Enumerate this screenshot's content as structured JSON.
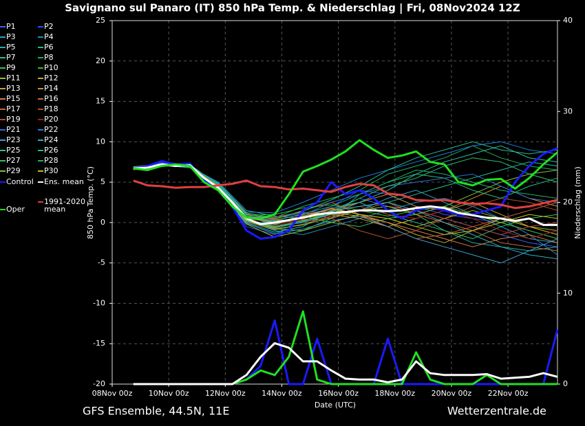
{
  "chart_data": {
    "type": "line",
    "title": "Savignano sul Panaro  (IT)  850 hPa Temp. & Niederschlag | Fri, 08Nov2024 12Z",
    "x_label": "Date (UTC)",
    "y_label": "850 hPa Temp. (°C)",
    "y2_label": "Niederschlag (mm)",
    "footer_left": "GFS Ensemble, 44.5N, 11E",
    "footer_right": "Wetterzentrale.de",
    "grid": true,
    "xlim": [
      0,
      378
    ],
    "xticks": [
      {
        "value": 0,
        "label": "08Nov 00z"
      },
      {
        "value": 48,
        "label": "10Nov 00z"
      },
      {
        "value": 96,
        "label": "12Nov 00z"
      },
      {
        "value": 144,
        "label": "14Nov 00z"
      },
      {
        "value": 192,
        "label": "16Nov 00z"
      },
      {
        "value": 240,
        "label": "18Nov 00z"
      },
      {
        "value": 288,
        "label": "20Nov 00z"
      },
      {
        "value": 336,
        "label": "22Nov 00z"
      }
    ],
    "ylim": [
      -20,
      25
    ],
    "yticks": [
      -20,
      -15,
      -10,
      -5,
      0,
      5,
      10,
      15,
      20,
      25
    ],
    "y2lim": [
      0,
      40
    ],
    "y2ticks": [
      0,
      10,
      20,
      30,
      40
    ],
    "x": [
      18,
      30,
      42,
      54,
      66,
      78,
      90,
      102,
      114,
      126,
      138,
      150,
      162,
      174,
      186,
      198,
      210,
      222,
      234,
      246,
      258,
      270,
      282,
      294,
      306,
      318,
      330,
      342,
      354,
      366,
      378
    ],
    "members_x": [
      18,
      42,
      66,
      90,
      114,
      138,
      162,
      186,
      210,
      234,
      258,
      282,
      306,
      330,
      354,
      378
    ],
    "members": [
      {
        "name": "P1",
        "color": "#4060ff",
        "values": [
          6.7,
          7.2,
          7.0,
          4.6,
          0.8,
          0.5,
          1.2,
          1.5,
          3.0,
          2.0,
          1.5,
          0.5,
          -0.5,
          -1.5,
          -2.5,
          -3.0
        ]
      },
      {
        "name": "P2",
        "color": "#3050ff",
        "values": [
          6.8,
          7.4,
          7.1,
          4.3,
          -0.5,
          -1.5,
          0.5,
          2.0,
          4.0,
          3.5,
          2.0,
          1.0,
          0.5,
          0.0,
          -1.0,
          -2.0
        ]
      },
      {
        "name": "P3",
        "color": "#30a0c0",
        "values": [
          6.6,
          7.1,
          6.8,
          4.8,
          1.0,
          -0.5,
          0.0,
          1.0,
          1.5,
          3.0,
          4.0,
          2.5,
          1.0,
          -0.5,
          -2.0,
          -2.5
        ]
      },
      {
        "name": "P4",
        "color": "#2090c0",
        "values": [
          6.7,
          7.3,
          7.2,
          4.0,
          0.2,
          -1.0,
          -1.5,
          -0.5,
          0.5,
          1.5,
          2.5,
          3.0,
          2.0,
          0.5,
          -1.5,
          -4.0
        ]
      },
      {
        "name": "P5",
        "color": "#20b0b0",
        "values": [
          6.9,
          7.0,
          6.9,
          5.0,
          1.5,
          0.8,
          0.5,
          1.8,
          2.5,
          1.0,
          0.0,
          -1.0,
          -2.5,
          -3.0,
          -3.5,
          -3.0
        ]
      },
      {
        "name": "P6",
        "color": "#20c080",
        "values": [
          6.7,
          7.2,
          7.0,
          4.5,
          0.5,
          -0.8,
          -1.0,
          0.5,
          3.5,
          5.0,
          6.0,
          5.5,
          4.0,
          3.0,
          4.5,
          5.5
        ]
      },
      {
        "name": "P7",
        "color": "#20c0a0",
        "values": [
          6.6,
          7.3,
          7.1,
          4.2,
          0.0,
          -1.2,
          -0.5,
          1.5,
          2.0,
          2.5,
          3.5,
          4.5,
          5.5,
          6.5,
          7.5,
          7.0
        ]
      },
      {
        "name": "P8",
        "color": "#20b060",
        "values": [
          6.8,
          7.1,
          6.8,
          4.9,
          1.2,
          0.6,
          2.0,
          3.0,
          4.0,
          6.0,
          7.0,
          8.0,
          9.5,
          8.0,
          7.0,
          6.5
        ]
      },
      {
        "name": "P9",
        "color": "#30c070",
        "values": [
          6.7,
          7.0,
          7.2,
          4.4,
          0.3,
          -0.3,
          0.8,
          0.0,
          -0.5,
          0.5,
          1.0,
          -1.0,
          -2.0,
          -0.5,
          0.5,
          1.0
        ]
      },
      {
        "name": "P10",
        "color": "#30c030",
        "values": [
          6.5,
          7.2,
          7.0,
          4.7,
          0.9,
          1.0,
          1.8,
          2.2,
          1.5,
          0.8,
          1.5,
          2.0,
          1.0,
          0.0,
          -1.0,
          -2.0
        ]
      },
      {
        "name": "P11",
        "color": "#a0c030",
        "values": [
          6.7,
          7.3,
          7.0,
          4.1,
          -0.2,
          -1.8,
          -1.0,
          0.0,
          1.0,
          0.5,
          -0.5,
          0.5,
          1.5,
          0.5,
          -0.5,
          -1.0
        ]
      },
      {
        "name": "P12",
        "color": "#c0b030",
        "values": [
          6.8,
          7.1,
          6.9,
          4.6,
          0.6,
          0.2,
          0.5,
          1.2,
          0.8,
          0.0,
          -1.5,
          -2.5,
          -1.0,
          0.5,
          -0.5,
          -1.5
        ]
      },
      {
        "name": "P13",
        "color": "#d0a030",
        "values": [
          6.6,
          7.2,
          7.1,
          4.3,
          0.4,
          -0.6,
          0.3,
          1.0,
          0.5,
          -0.5,
          0.5,
          1.5,
          2.5,
          1.0,
          -0.5,
          -1.5
        ]
      },
      {
        "name": "P14",
        "color": "#d09030",
        "values": [
          6.7,
          7.0,
          7.0,
          4.8,
          1.1,
          0.3,
          1.0,
          1.5,
          2.5,
          3.5,
          2.0,
          1.5,
          3.0,
          4.5,
          3.0,
          2.0
        ]
      },
      {
        "name": "P15",
        "color": "#d08050",
        "values": [
          6.9,
          7.3,
          6.8,
          4.5,
          0.7,
          -0.2,
          0.6,
          1.8,
          1.0,
          0.0,
          -1.0,
          -2.0,
          -3.0,
          -2.0,
          -1.5,
          -2.5
        ]
      },
      {
        "name": "P16",
        "color": "#c07040",
        "values": [
          6.7,
          7.1,
          7.2,
          4.2,
          0.1,
          -0.9,
          -0.2,
          0.8,
          1.5,
          2.5,
          1.0,
          0.0,
          -1.0,
          -2.5,
          -3.0,
          -3.5
        ]
      },
      {
        "name": "P17",
        "color": "#d06040",
        "values": [
          6.6,
          7.2,
          7.0,
          4.6,
          0.8,
          0.4,
          1.5,
          2.5,
          1.0,
          -0.5,
          -2.0,
          -1.5,
          -0.5,
          0.5,
          1.5,
          2.5
        ]
      },
      {
        "name": "P18",
        "color": "#b05030",
        "values": [
          6.8,
          7.0,
          6.9,
          4.4,
          0.5,
          0.0,
          0.2,
          0.5,
          -1.0,
          -2.0,
          -1.0,
          0.5,
          2.0,
          3.0,
          2.5,
          1.5
        ]
      },
      {
        "name": "P19",
        "color": "#c04040",
        "values": [
          6.7,
          7.3,
          7.1,
          4.7,
          0.9,
          0.7,
          1.3,
          0.5,
          1.5,
          2.0,
          1.5,
          0.5,
          -0.5,
          -1.5,
          -0.5,
          0.0
        ]
      },
      {
        "name": "P20",
        "color": "#a02020",
        "values": [
          6.5,
          7.1,
          7.0,
          4.3,
          0.2,
          -0.4,
          0.4,
          1.6,
          2.0,
          1.0,
          0.5,
          1.5,
          0.5,
          -1.0,
          -2.0,
          -1.0
        ]
      },
      {
        "name": "P21",
        "color": "#3070d0",
        "values": [
          6.7,
          7.2,
          7.1,
          4.5,
          0.6,
          -0.1,
          0.9,
          2.5,
          3.5,
          4.5,
          5.0,
          5.5,
          6.0,
          4.5,
          3.0,
          2.5
        ]
      },
      {
        "name": "P22",
        "color": "#2080e0",
        "values": [
          6.8,
          7.1,
          6.9,
          4.9,
          1.3,
          1.2,
          2.5,
          4.0,
          5.5,
          6.5,
          7.5,
          8.5,
          9.5,
          10.0,
          9.0,
          8.5
        ]
      },
      {
        "name": "P23",
        "color": "#40a0d0",
        "values": [
          6.6,
          7.3,
          7.0,
          4.1,
          -0.1,
          -1.4,
          -0.8,
          0.2,
          0.8,
          -0.5,
          -2.0,
          -3.0,
          -4.0,
          -5.0,
          -3.5,
          -2.0
        ]
      },
      {
        "name": "P24",
        "color": "#30b0c0",
        "values": [
          6.7,
          7.0,
          7.2,
          4.6,
          0.7,
          0.1,
          0.7,
          1.4,
          2.0,
          2.5,
          1.5,
          0.0,
          -1.5,
          -3.0,
          -4.0,
          -4.5
        ]
      },
      {
        "name": "P25",
        "color": "#30c0a0",
        "values": [
          6.9,
          7.2,
          7.0,
          4.3,
          0.3,
          -0.7,
          0.1,
          1.1,
          2.5,
          4.0,
          6.0,
          7.5,
          8.5,
          9.5,
          8.0,
          7.5
        ]
      },
      {
        "name": "P26",
        "color": "#20c090",
        "values": [
          6.7,
          7.1,
          6.8,
          4.8,
          1.0,
          0.5,
          1.4,
          2.8,
          4.5,
          6.5,
          8.0,
          9.0,
          10.0,
          9.0,
          8.5,
          9.0
        ]
      },
      {
        "name": "P27",
        "color": "#30c070",
        "values": [
          6.6,
          7.2,
          7.1,
          4.4,
          0.4,
          -0.5,
          0.2,
          1.3,
          3.0,
          4.5,
          5.5,
          7.0,
          8.0,
          7.5,
          6.0,
          5.0
        ]
      },
      {
        "name": "P28",
        "color": "#20b070",
        "values": [
          6.8,
          7.3,
          7.0,
          4.7,
          0.8,
          0.2,
          1.1,
          2.0,
          3.5,
          5.0,
          6.5,
          6.0,
          5.0,
          4.0,
          3.5,
          3.0
        ]
      },
      {
        "name": "P29",
        "color": "#80c040",
        "values": [
          6.7,
          7.0,
          7.1,
          4.2,
          0.2,
          -0.8,
          -0.3,
          0.6,
          1.5,
          2.0,
          1.0,
          2.0,
          3.5,
          5.0,
          6.0,
          6.5
        ]
      },
      {
        "name": "P30",
        "color": "#c0c020",
        "values": [
          6.6,
          7.2,
          6.9,
          4.5,
          0.6,
          0.0,
          0.8,
          1.7,
          1.0,
          0.5,
          -0.5,
          -1.5,
          -1.0,
          0.0,
          1.0,
          0.5
        ]
      }
    ],
    "series": [
      {
        "name": "Control",
        "color": "#1a1aff",
        "values": [
          6.7,
          7.0,
          7.6,
          7.2,
          7.3,
          5.2,
          4.2,
          2.0,
          -1.0,
          -2.0,
          -1.8,
          -1.0,
          1.5,
          2.5,
          5.0,
          3.5,
          4.0,
          3.0,
          1.5,
          0.5,
          1.5,
          2.0,
          1.5,
          1.0,
          1.0,
          1.5,
          2.0,
          5.0,
          7.0,
          8.5,
          9.2
        ]
      },
      {
        "name": "Ens. mean",
        "color": "#ffffff",
        "values": [
          6.7,
          6.8,
          7.2,
          7.0,
          7.1,
          5.5,
          4.3,
          2.5,
          0.5,
          -0.2,
          0.0,
          0.3,
          0.6,
          1.0,
          1.2,
          1.3,
          1.5,
          1.5,
          1.4,
          1.5,
          1.8,
          2.0,
          1.8,
          1.2,
          0.9,
          0.6,
          0.5,
          0.2,
          0.5,
          -0.3,
          -0.3
        ]
      },
      {
        "name": "1991-2020 mean",
        "color": "#e04040",
        "values": [
          5.2,
          4.6,
          4.5,
          4.3,
          4.4,
          4.4,
          4.6,
          4.8,
          5.2,
          4.5,
          4.4,
          4.1,
          4.2,
          4.0,
          3.8,
          4.4,
          4.8,
          4.6,
          3.6,
          3.4,
          2.8,
          2.7,
          2.8,
          2.5,
          2.3,
          2.4,
          2.2,
          1.8,
          2.0,
          2.4,
          2.8
        ]
      },
      {
        "name": "Oper",
        "color": "#20e020",
        "values": [
          6.7,
          6.5,
          7.0,
          7.2,
          7.0,
          5.0,
          4.0,
          2.0,
          0.6,
          0.5,
          1.0,
          3.5,
          6.3,
          7.0,
          7.8,
          8.8,
          10.2,
          9.0,
          8.0,
          8.3,
          8.8,
          7.5,
          7.2,
          5.0,
          4.6,
          5.3,
          5.4,
          4.2,
          5.5,
          7.2,
          8.7
        ]
      },
      {
        "axis": "y2",
        "color": "#1a1aff",
        "values": [
          0,
          0,
          0,
          0,
          0,
          0,
          0,
          0,
          0.5,
          2,
          7,
          0,
          0,
          5,
          0,
          0,
          0,
          0,
          5,
          0,
          0,
          0,
          0,
          0,
          0,
          0,
          0,
          0,
          0,
          0,
          6
        ]
      },
      {
        "axis": "y2",
        "color": "#20e020",
        "values": [
          0,
          0,
          0,
          0,
          0,
          0,
          0,
          0,
          0.5,
          1.5,
          1,
          3,
          8,
          0.5,
          0,
          0,
          0,
          0,
          0,
          0,
          3.5,
          0.5,
          0,
          0,
          0,
          1,
          0,
          0,
          0,
          0,
          0
        ]
      },
      {
        "axis": "y2",
        "color": "#ffffff",
        "values": [
          0,
          0,
          0,
          0,
          0,
          0,
          0,
          0,
          1,
          3,
          4.5,
          4,
          2.5,
          2.5,
          1.5,
          0.6,
          0.5,
          0.5,
          0.2,
          0.5,
          2.5,
          1.2,
          1.0,
          1.0,
          1.0,
          1.1,
          0.6,
          0.7,
          0.8,
          1.2,
          0.8
        ]
      }
    ]
  }
}
